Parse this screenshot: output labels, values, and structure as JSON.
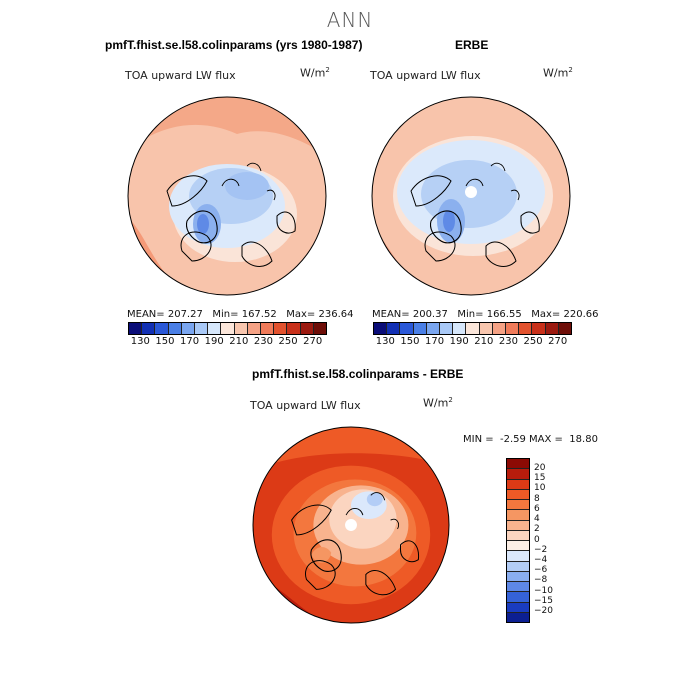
{
  "suptitle": "ANN",
  "panels": [
    {
      "title": "pmfT.fhist.se.l58.colinparams (yrs 1980-1987)",
      "variable": "TOA upward LW flux",
      "units_base": "W/m",
      "units_exp": "2",
      "stats": {
        "mean_label": "MEAN=",
        "mean": "207.27",
        "min_label": "Min=",
        "min": "167.52",
        "max_label": "Max=",
        "max": "236.64"
      }
    },
    {
      "title": "ERBE",
      "variable": "TOA upward LW flux",
      "units_base": "W/m",
      "units_exp": "2",
      "stats": {
        "mean_label": "MEAN=",
        "mean": "200.37",
        "min_label": "Min=",
        "min": "166.55",
        "max_label": "Max=",
        "max": "220.66"
      }
    }
  ],
  "colorbar": {
    "ticks": [
      "130",
      "150",
      "170",
      "190",
      "210",
      "230",
      "250",
      "270"
    ],
    "colors": [
      "#0a0d78",
      "#1230b4",
      "#2a58d8",
      "#4a7fe6",
      "#7aa6f0",
      "#a9c9f7",
      "#d6e7fb",
      "#fbe6da",
      "#f8c6ae",
      "#f5a285",
      "#f07b5a",
      "#e2522e",
      "#c8301a",
      "#9c1a10",
      "#6e0e08"
    ]
  },
  "diff_panel": {
    "title": "pmfT.fhist.se.l58.colinparams - ERBE",
    "variable": "TOA upward LW flux",
    "units_base": "W/m",
    "units_exp": "2",
    "stats": {
      "min_label": "MIN =",
      "min": "-2.59",
      "max_label": "MAX =",
      "max": "18.80"
    },
    "colorbar_labels": [
      "20",
      "15",
      "10",
      "8",
      "6",
      "4",
      "2",
      "0",
      "−2",
      "−4",
      "−6",
      "−8",
      "−10",
      "−15",
      "−20"
    ],
    "colorbar_colors": [
      "#8c0a04",
      "#b81c0c",
      "#dc3a16",
      "#ee5a26",
      "#f3773e",
      "#f59662",
      "#f8b38e",
      "#fbd5c0",
      "#fcefe6",
      "#dbe8fb",
      "#b3cdf6",
      "#8aaef0",
      "#5e88e6",
      "#3562d8",
      "#1a3cc0",
      "#0c1f92"
    ]
  }
}
